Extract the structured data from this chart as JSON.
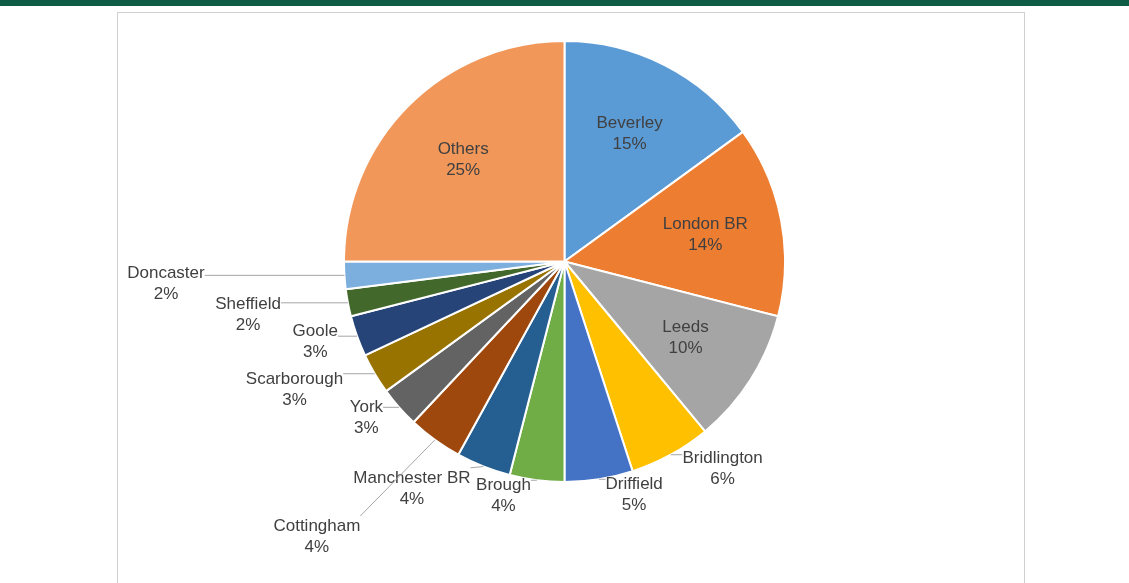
{
  "chart_data": {
    "type": "pie",
    "categories": [
      "Beverley",
      "London BR",
      "Leeds",
      "Bridlington",
      "Driffield",
      "Brough",
      "Manchester BR",
      "Cottingham",
      "York",
      "Scarborough",
      "Goole",
      "Sheffield",
      "Doncaster",
      "Others"
    ],
    "values": [
      15,
      14,
      10,
      6,
      5,
      4,
      4,
      4,
      3,
      3,
      3,
      2,
      2,
      25
    ],
    "value_labels": [
      "15%",
      "14%",
      "10%",
      "6%",
      "5%",
      "4%",
      "4%",
      "4%",
      "3%",
      "3%",
      "3%",
      "2%",
      "2%",
      "25%"
    ],
    "colors": [
      "#5b9bd5",
      "#ed7d31",
      "#a5a5a5",
      "#ffc000",
      "#4472c4",
      "#70ad47",
      "#255e91",
      "#9e480e",
      "#636363",
      "#997300",
      "#264478",
      "#43682b",
      "#7cafdd",
      "#f1975a"
    ],
    "legend": false
  }
}
